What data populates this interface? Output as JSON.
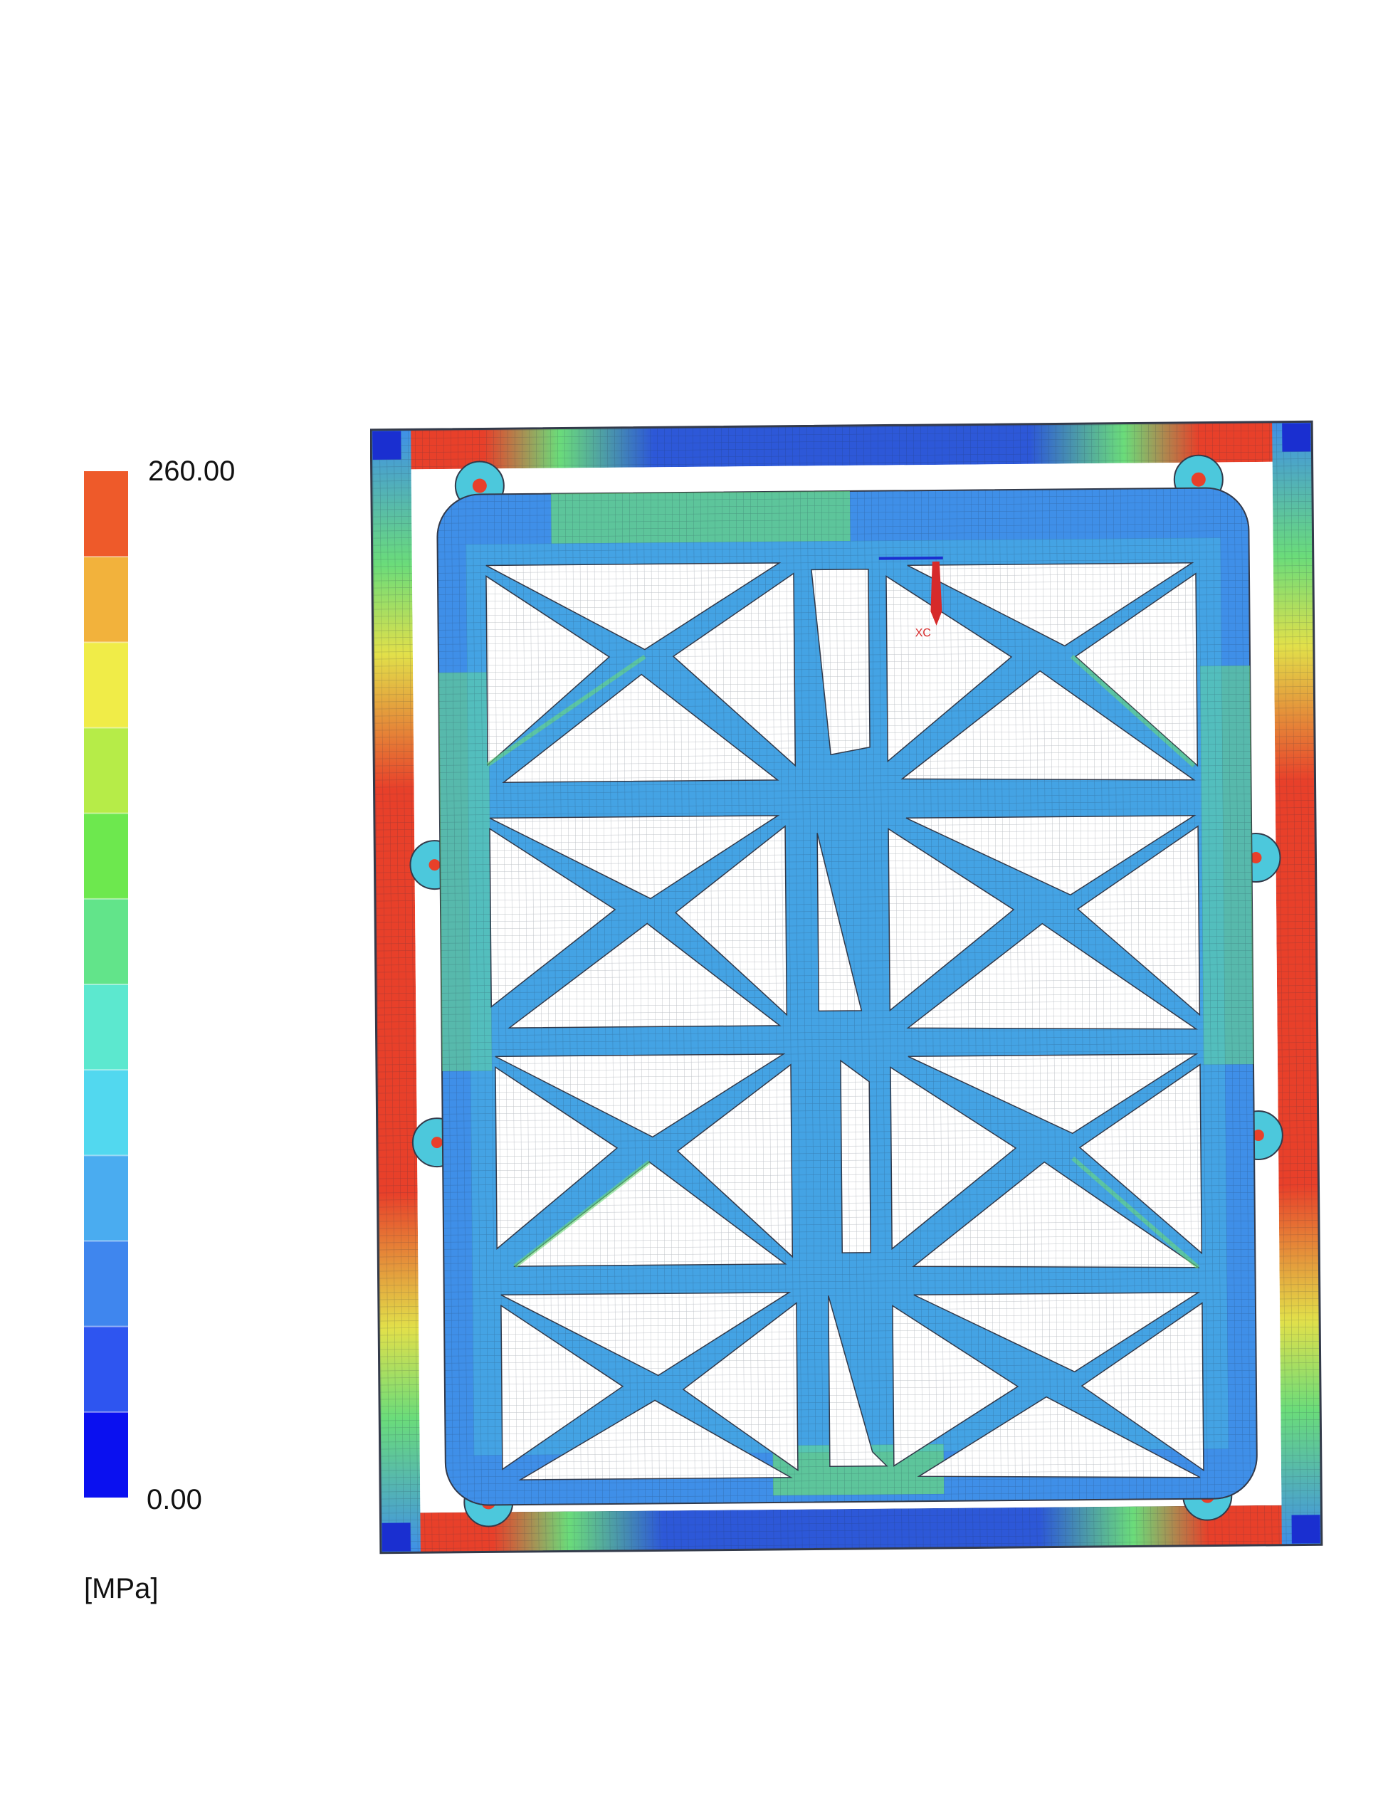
{
  "legend": {
    "max_label": "260.00",
    "min_label": "0.00",
    "unit_label": "[MPa]",
    "max_value": 260,
    "min_value": 0,
    "band_count": 12,
    "colors": [
      "#0a10f0",
      "#2e55f0",
      "#3f86ee",
      "#4aacf0",
      "#52d8ef",
      "#5ce8cf",
      "#62e48a",
      "#6de84e",
      "#b6ec48",
      "#f0ec48",
      "#f2b23c",
      "#ee5a2a"
    ]
  },
  "model": {
    "annotation": "XC",
    "colors": {
      "low": "#2d58d8",
      "low_mid": "#3f8fe8",
      "mid": "#4cc8dc",
      "mid_high": "#6bdc7a",
      "high_mid": "#e2e04a",
      "high": "#e8402a",
      "outline": "#333a4a"
    }
  }
}
